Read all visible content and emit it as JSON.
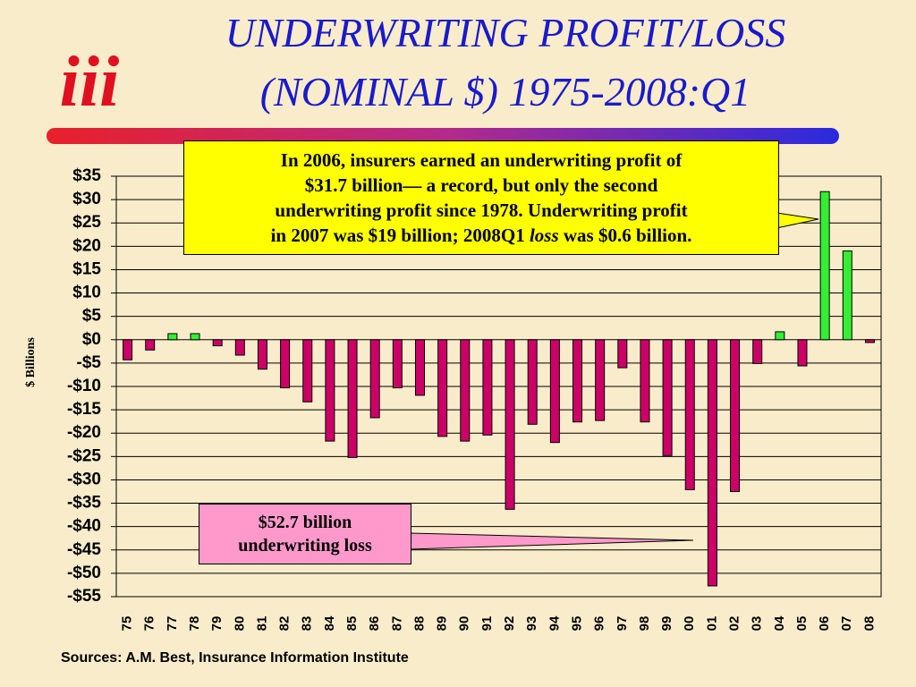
{
  "chart_data": {
    "type": "bar",
    "logo": "iii",
    "title_lines": [
      "UNDERWRITING PROFIT/LOSS",
      "(NOMINAL $) 1975-2008:Q1"
    ],
    "y_label": "$ Billions",
    "source": "Sources:  A.M. Best, Insurance Information Institute",
    "categories": [
      "75",
      "76",
      "77",
      "78",
      "79",
      "80",
      "81",
      "82",
      "83",
      "84",
      "85",
      "86",
      "87",
      "88",
      "89",
      "90",
      "91",
      "92",
      "93",
      "94",
      "95",
      "96",
      "97",
      "98",
      "99",
      "00",
      "01",
      "02",
      "03",
      "04",
      "05",
      "06",
      "07",
      "08"
    ],
    "values": [
      -4.3,
      -2.2,
      1.3,
      1.3,
      -1.3,
      -3.3,
      -6.3,
      -10.3,
      -13.3,
      -21.7,
      -25.2,
      -16.7,
      -10.3,
      -11.9,
      -20.7,
      -21.7,
      -20.4,
      -36.3,
      -18.1,
      -22.0,
      -17.6,
      -17.3,
      -6.0,
      -17.6,
      -24.8,
      -32.1,
      -52.7,
      -32.5,
      -5.1,
      1.7,
      -5.6,
      31.7,
      19.0,
      -0.6
    ],
    "positive_color": "#33ee33",
    "negative_color": "#cc0066",
    "ylim": [
      -55,
      35
    ],
    "yticks": [
      {
        "value": 35,
        "label": "$35"
      },
      {
        "value": 30,
        "label": "$30"
      },
      {
        "value": 25,
        "label": "$25"
      },
      {
        "value": 20,
        "label": "$20"
      },
      {
        "value": 15,
        "label": "$15"
      },
      {
        "value": 10,
        "label": "$10"
      },
      {
        "value": 5,
        "label": "$5"
      },
      {
        "value": 0,
        "label": "$0"
      },
      {
        "value": -5,
        "label": "-$5"
      },
      {
        "value": -10,
        "label": "-$10"
      },
      {
        "value": -15,
        "label": "-$15"
      },
      {
        "value": -20,
        "label": "-$20"
      },
      {
        "value": -25,
        "label": "-$25"
      },
      {
        "value": -30,
        "label": "-$30"
      },
      {
        "value": -35,
        "label": "-$35"
      },
      {
        "value": -40,
        "label": "-$40"
      },
      {
        "value": -45,
        "label": "-$45"
      },
      {
        "value": -50,
        "label": "-$50"
      },
      {
        "value": -55,
        "label": "-$55"
      }
    ],
    "grid": true,
    "callout": {
      "lines": [
        "In 2006, insurers earned an underwriting profit of",
        "$31.7 billion— a record, but only the second",
        "underwriting profit since 1978. Underwriting profit"
      ],
      "last_line": [
        "in 2007 was $19 billion; 2008Q1 ",
        "loss",
        " was $0.6 billion."
      ]
    },
    "loss_note": [
      "$52.7 billion",
      "underwriting loss"
    ]
  }
}
